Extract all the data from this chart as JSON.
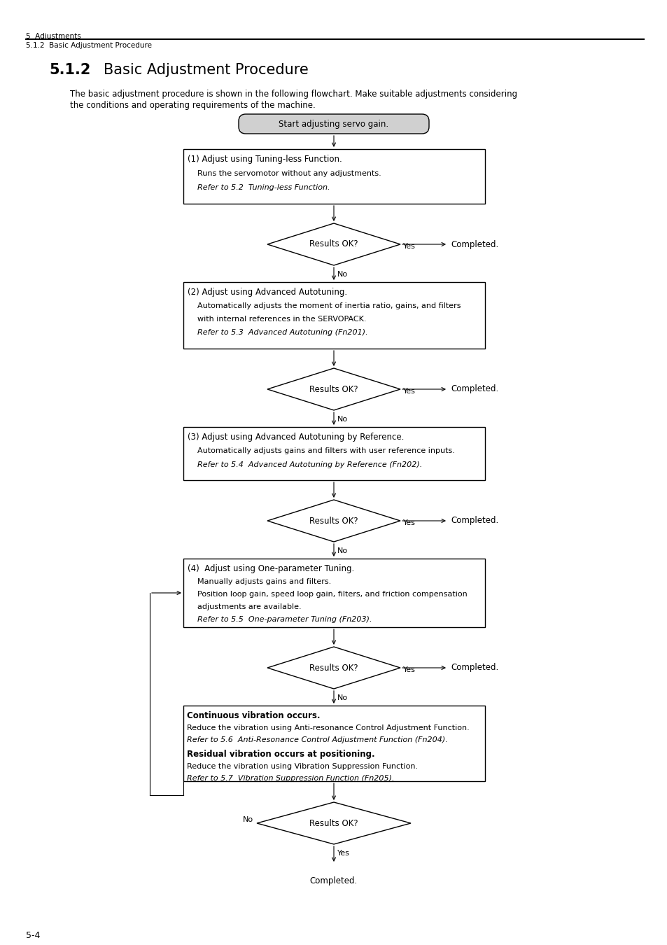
{
  "page_header_main": "5  Adjustments",
  "page_header_sub": "5.1.2  Basic Adjustment Procedure",
  "section_number": "5.1.2",
  "section_title": "Basic Adjustment Procedure",
  "intro_line1": "The basic adjustment procedure is shown in the following flowchart. Make suitable adjustments considering",
  "intro_line2": "the conditions and operating requirements of the machine.",
  "page_number": "5-4",
  "start_box_text": "Start adjusting servo gain.",
  "diamond_text": "Results OK?",
  "yes_text": "Yes",
  "no_text": "No",
  "completed_text": "Completed.",
  "b1_line1": "(1) Adjust using Tuning-less Function.",
  "b1_line2": "    Runs the servomotor without any adjustments.",
  "b1_line3_italic": "    Refer to 5.2  Tuning-less Function.",
  "b2_line1": "(2) Adjust using Advanced Autotuning.",
  "b2_line2": "    Automatically adjusts the moment of inertia ratio, gains, and filters",
  "b2_line3": "    with internal references in the SERVOPACK.",
  "b2_line4_italic": "    Refer to 5.3  Advanced Autotuning (Fn201).",
  "b3_line1": "(3) Adjust using Advanced Autotuning by Reference.",
  "b3_line2": "    Automatically adjusts gains and filters with user reference inputs.",
  "b3_line3_italic": "    Refer to 5.4  Advanced Autotuning by Reference (Fn202).",
  "b4_line1": "(4)  Adjust using One-parameter Tuning.",
  "b4_line2": "    Manually adjusts gains and filters.",
  "b4_line3": "    Position loop gain, speed loop gain, filters, and friction compensation",
  "b4_line4": "    adjustments are available.",
  "b4_line5_italic": "    Refer to 5.5  One-parameter Tuning (Fn203).",
  "b5_line1_bold": "Continuous vibration occurs.",
  "b5_line2": "Reduce the vibration using Anti-resonance Control Adjustment Function.",
  "b5_line3_italic": "Refer to 5.6  Anti-Resonance Control Adjustment Function (Fn204).",
  "b5_line4_bold": "Residual vibration occurs at positioning.",
  "b5_line5": "Reduce the vibration using Vibration Suppression Function.",
  "b5_line6_italic": "Refer to 5.7  Vibration Suppression Function (Fn205).",
  "background_color": "#ffffff"
}
